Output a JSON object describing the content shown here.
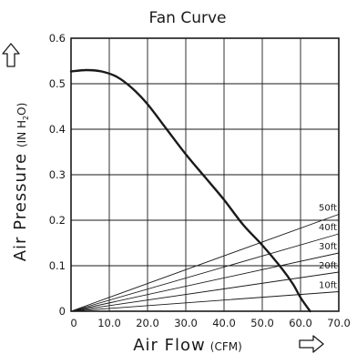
{
  "chart_data": {
    "type": "line",
    "title": "Fan Curve",
    "xlabel": "Air Flow",
    "xlabel_unit": "(CFM)",
    "ylabel": "Air Pressure",
    "ylabel_unit_open": "(IN H",
    "ylabel_unit_sub": "2",
    "ylabel_unit_close": "O)",
    "xlim": [
      0,
      70
    ],
    "ylim": [
      0,
      0.6
    ],
    "x_ticks": [
      "0",
      "10.0",
      "20.0",
      "30.0",
      "40.0",
      "50.0",
      "60.0",
      "70.0"
    ],
    "y_ticks": [
      "0",
      "0.1",
      "0.2",
      "0.3",
      "0.4",
      "0.5",
      "0.6"
    ],
    "x_tick_values": [
      0,
      10,
      20,
      30,
      40,
      50,
      60,
      70
    ],
    "y_tick_values": [
      0,
      0.1,
      0.2,
      0.3,
      0.4,
      0.5,
      0.6
    ],
    "grid": true,
    "fan_curve": {
      "x": [
        0,
        4,
        8,
        12,
        16,
        20,
        25,
        30,
        35,
        40,
        45,
        50,
        55,
        58,
        60,
        62.5
      ],
      "y": [
        0.527,
        0.53,
        0.527,
        0.515,
        0.49,
        0.455,
        0.4,
        0.345,
        0.295,
        0.245,
        0.19,
        0.145,
        0.095,
        0.06,
        0.03,
        0
      ]
    },
    "system_curves": [
      {
        "name": "50ft",
        "x": [
          0,
          70
        ],
        "y": [
          0,
          0.213
        ]
      },
      {
        "name": "40ft",
        "x": [
          0,
          70
        ],
        "y": [
          0,
          0.17
        ]
      },
      {
        "name": "30ft",
        "x": [
          0,
          70
        ],
        "y": [
          0,
          0.128
        ]
      },
      {
        "name": "20ft",
        "x": [
          0,
          70
        ],
        "y": [
          0,
          0.086
        ]
      },
      {
        "name": "10ft",
        "x": [
          0,
          70
        ],
        "y": [
          0,
          0.043
        ]
      }
    ],
    "colors": {
      "line": "#1a1a1a",
      "grid": "#1a1a1a",
      "frame": "#1a1a1a"
    }
  }
}
